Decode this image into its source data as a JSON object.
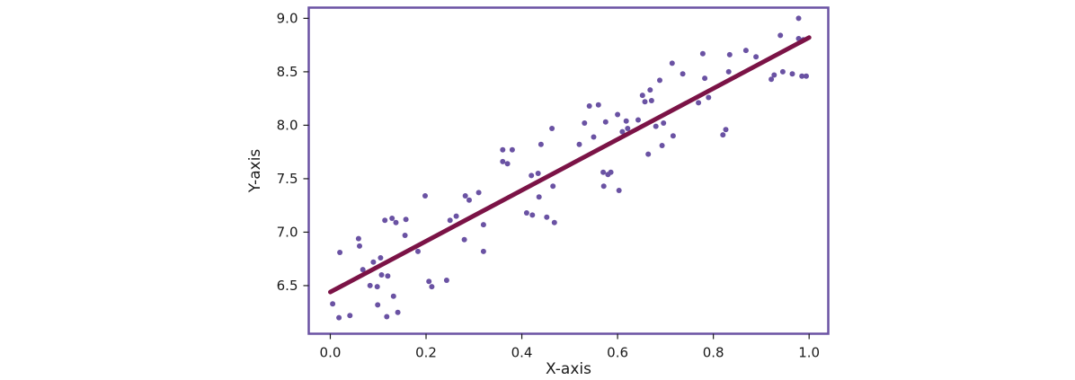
{
  "chart_data": {
    "type": "scatter",
    "xlabel": "X-axis",
    "ylabel": "Y-axis",
    "xlim": [
      -0.045,
      1.04
    ],
    "ylim": [
      6.05,
      9.1
    ],
    "x_ticks": [
      0.0,
      0.2,
      0.4,
      0.6,
      0.8,
      1.0
    ],
    "x_tick_labels": [
      "0.0",
      "0.2",
      "0.4",
      "0.6",
      "0.8",
      "1.0"
    ],
    "y_ticks": [
      6.5,
      7.0,
      7.5,
      8.0,
      8.5,
      9.0
    ],
    "y_tick_labels": [
      "6.5",
      "7.0",
      "7.5",
      "8.0",
      "8.5",
      "9.0"
    ],
    "grid": false,
    "colors": {
      "points": "#6a52a3",
      "fit_line": "#7b1346",
      "frame": "#6a52a3"
    },
    "series": [
      {
        "type": "scatter",
        "x": [
          0.005,
          0.018,
          0.02,
          0.041,
          0.059,
          0.068,
          0.061,
          0.083,
          0.09,
          0.098,
          0.099,
          0.105,
          0.107,
          0.114,
          0.118,
          0.12,
          0.129,
          0.132,
          0.137,
          0.141,
          0.156,
          0.158,
          0.183,
          0.198,
          0.206,
          0.212,
          0.243,
          0.25,
          0.263,
          0.28,
          0.282,
          0.29,
          0.31,
          0.32,
          0.32,
          0.36,
          0.36,
          0.37,
          0.38,
          0.41,
          0.42,
          0.422,
          0.434,
          0.436,
          0.44,
          0.452,
          0.463,
          0.465,
          0.468,
          0.52,
          0.531,
          0.541,
          0.55,
          0.56,
          0.57,
          0.571,
          0.575,
          0.58,
          0.586,
          0.6,
          0.603,
          0.61,
          0.618,
          0.621,
          0.643,
          0.652,
          0.657,
          0.664,
          0.668,
          0.671,
          0.68,
          0.688,
          0.693,
          0.696,
          0.714,
          0.716,
          0.736,
          0.769,
          0.778,
          0.782,
          0.79,
          0.82,
          0.826,
          0.832,
          0.834,
          0.868,
          0.889,
          0.921,
          0.927,
          0.94,
          0.945,
          0.965,
          0.978,
          0.978,
          0.985,
          0.988,
          0.994
        ],
        "y": [
          6.33,
          6.2,
          6.81,
          6.22,
          6.94,
          6.65,
          6.87,
          6.5,
          6.72,
          6.49,
          6.32,
          6.76,
          6.6,
          7.11,
          6.21,
          6.59,
          7.13,
          6.4,
          7.09,
          6.25,
          6.97,
          7.12,
          6.82,
          7.34,
          6.54,
          6.49,
          6.55,
          7.11,
          7.15,
          6.93,
          7.34,
          7.3,
          7.37,
          6.82,
          7.07,
          7.77,
          7.66,
          7.64,
          7.77,
          7.18,
          7.53,
          7.16,
          7.55,
          7.33,
          7.82,
          7.14,
          7.97,
          7.43,
          7.09,
          7.82,
          8.02,
          8.18,
          7.89,
          8.19,
          7.56,
          7.43,
          8.03,
          7.54,
          7.56,
          8.1,
          7.39,
          7.94,
          8.04,
          7.97,
          8.05,
          8.28,
          8.22,
          7.73,
          8.33,
          8.23,
          7.99,
          8.42,
          7.81,
          8.02,
          8.58,
          7.9,
          8.48,
          8.21,
          8.67,
          8.44,
          8.26,
          7.91,
          7.96,
          8.5,
          8.66,
          8.7,
          8.64,
          8.43,
          8.47,
          8.84,
          8.5,
          8.48,
          9.0,
          8.81,
          8.46,
          8.8,
          8.46
        ]
      },
      {
        "type": "line",
        "x": [
          0.0,
          1.0
        ],
        "y": [
          6.44,
          8.82
        ]
      }
    ]
  }
}
